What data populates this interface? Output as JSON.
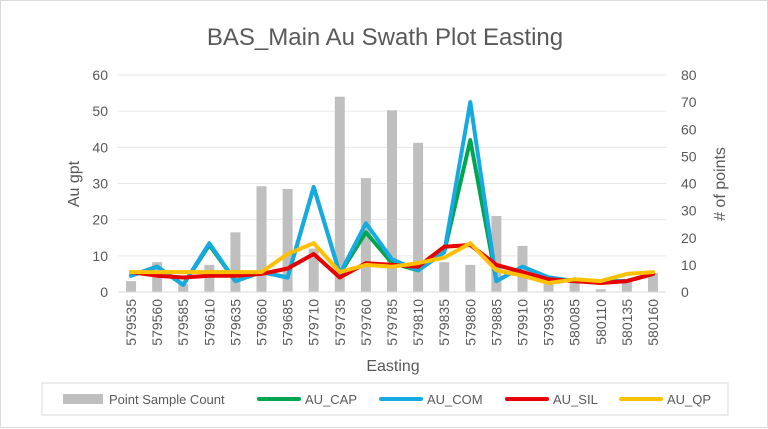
{
  "chart_data": {
    "type": "bar",
    "title": "BAS_Main Au Swath Plot Easting",
    "xlabel": "Easting",
    "ylabel": "Au gpt",
    "y2label": "# of points",
    "ylim": [
      0,
      60
    ],
    "y2lim": [
      0,
      80
    ],
    "yticks": [
      "0",
      "10",
      "20",
      "30",
      "40",
      "50",
      "60"
    ],
    "y2ticks": [
      "0",
      "10",
      "20",
      "30",
      "40",
      "50",
      "60",
      "70",
      "80"
    ],
    "categories": [
      "579535",
      "579560",
      "579585",
      "579610",
      "579635",
      "579660",
      "579685",
      "579710",
      "579735",
      "579760",
      "579785",
      "579810",
      "579835",
      "579860",
      "579885",
      "579910",
      "579935",
      "580085",
      "580110",
      "580135",
      "580160"
    ],
    "grid": true,
    "legend_position": "bottom",
    "series": [
      {
        "name": "Point Sample Count",
        "type": "bar",
        "axis": "secondary",
        "color": "#bfbfbf",
        "values": [
          4,
          11,
          3,
          10,
          22,
          39,
          38,
          16,
          72,
          42,
          67,
          55,
          11,
          10,
          28,
          17,
          6,
          5,
          1,
          4,
          7
        ]
      },
      {
        "name": "AU_CAP",
        "type": "line",
        "axis": "primary",
        "color": "#00a550",
        "values": [
          4.5,
          7,
          2,
          13,
          3,
          5.5,
          4,
          29,
          5,
          16.5,
          8,
          6,
          11,
          42,
          3,
          7,
          4,
          3,
          3,
          3,
          5
        ]
      },
      {
        "name": "AU_COM",
        "type": "line",
        "axis": "primary",
        "color": "#17a9e1",
        "values": [
          4.5,
          7,
          2,
          13.5,
          3,
          5.5,
          4,
          29,
          5,
          19,
          9,
          6,
          11,
          52.5,
          3,
          7,
          4,
          3,
          3,
          3,
          5
        ]
      },
      {
        "name": "AU_SIL",
        "type": "line",
        "axis": "primary",
        "color": "#e60000",
        "values": [
          5.5,
          4.5,
          4,
          4.5,
          4.5,
          5,
          6.5,
          10.5,
          4,
          8,
          7.5,
          7,
          12.5,
          13,
          7.5,
          5.5,
          3.5,
          3,
          2.5,
          3,
          5
        ]
      },
      {
        "name": "AU_QP",
        "type": "line",
        "axis": "primary",
        "color": "#ffc000",
        "values": [
          5.5,
          5.5,
          5.5,
          5.5,
          5.5,
          5.5,
          10.5,
          13.5,
          5.5,
          7.5,
          7,
          8,
          9.5,
          13.5,
          6,
          4.5,
          2.5,
          3.5,
          3,
          5,
          5.5
        ]
      }
    ]
  }
}
